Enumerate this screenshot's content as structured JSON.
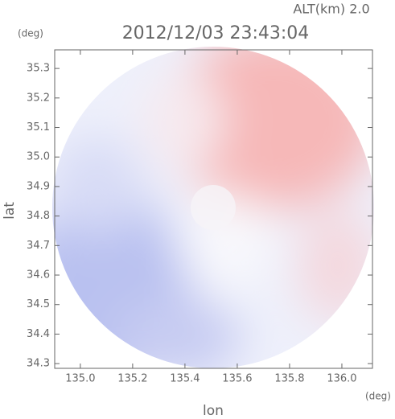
{
  "chart_data": {
    "type": "image",
    "title": "2012/12/03 23:43:04",
    "subtitle": "ALT(km)  2.0",
    "x_label": "lon",
    "y_label": "lat",
    "x_unit": "(deg)",
    "y_unit": "(deg)",
    "xlim": [
      134.902,
      136.117
    ],
    "xticks": [
      {
        "value": 135.0,
        "label": "135.0"
      },
      135.2,
      135.4,
      135.6,
      135.8,
      {
        "value": 136.0,
        "label": "136.0"
      }
    ],
    "ylim": [
      34.284,
      35.363
    ],
    "yticks": [
      34.3,
      34.4,
      34.5,
      34.6,
      34.7,
      34.8,
      34.9,
      {
        "value": 35.0,
        "label": "35.0"
      },
      35.1,
      35.2,
      35.3
    ]
  }
}
